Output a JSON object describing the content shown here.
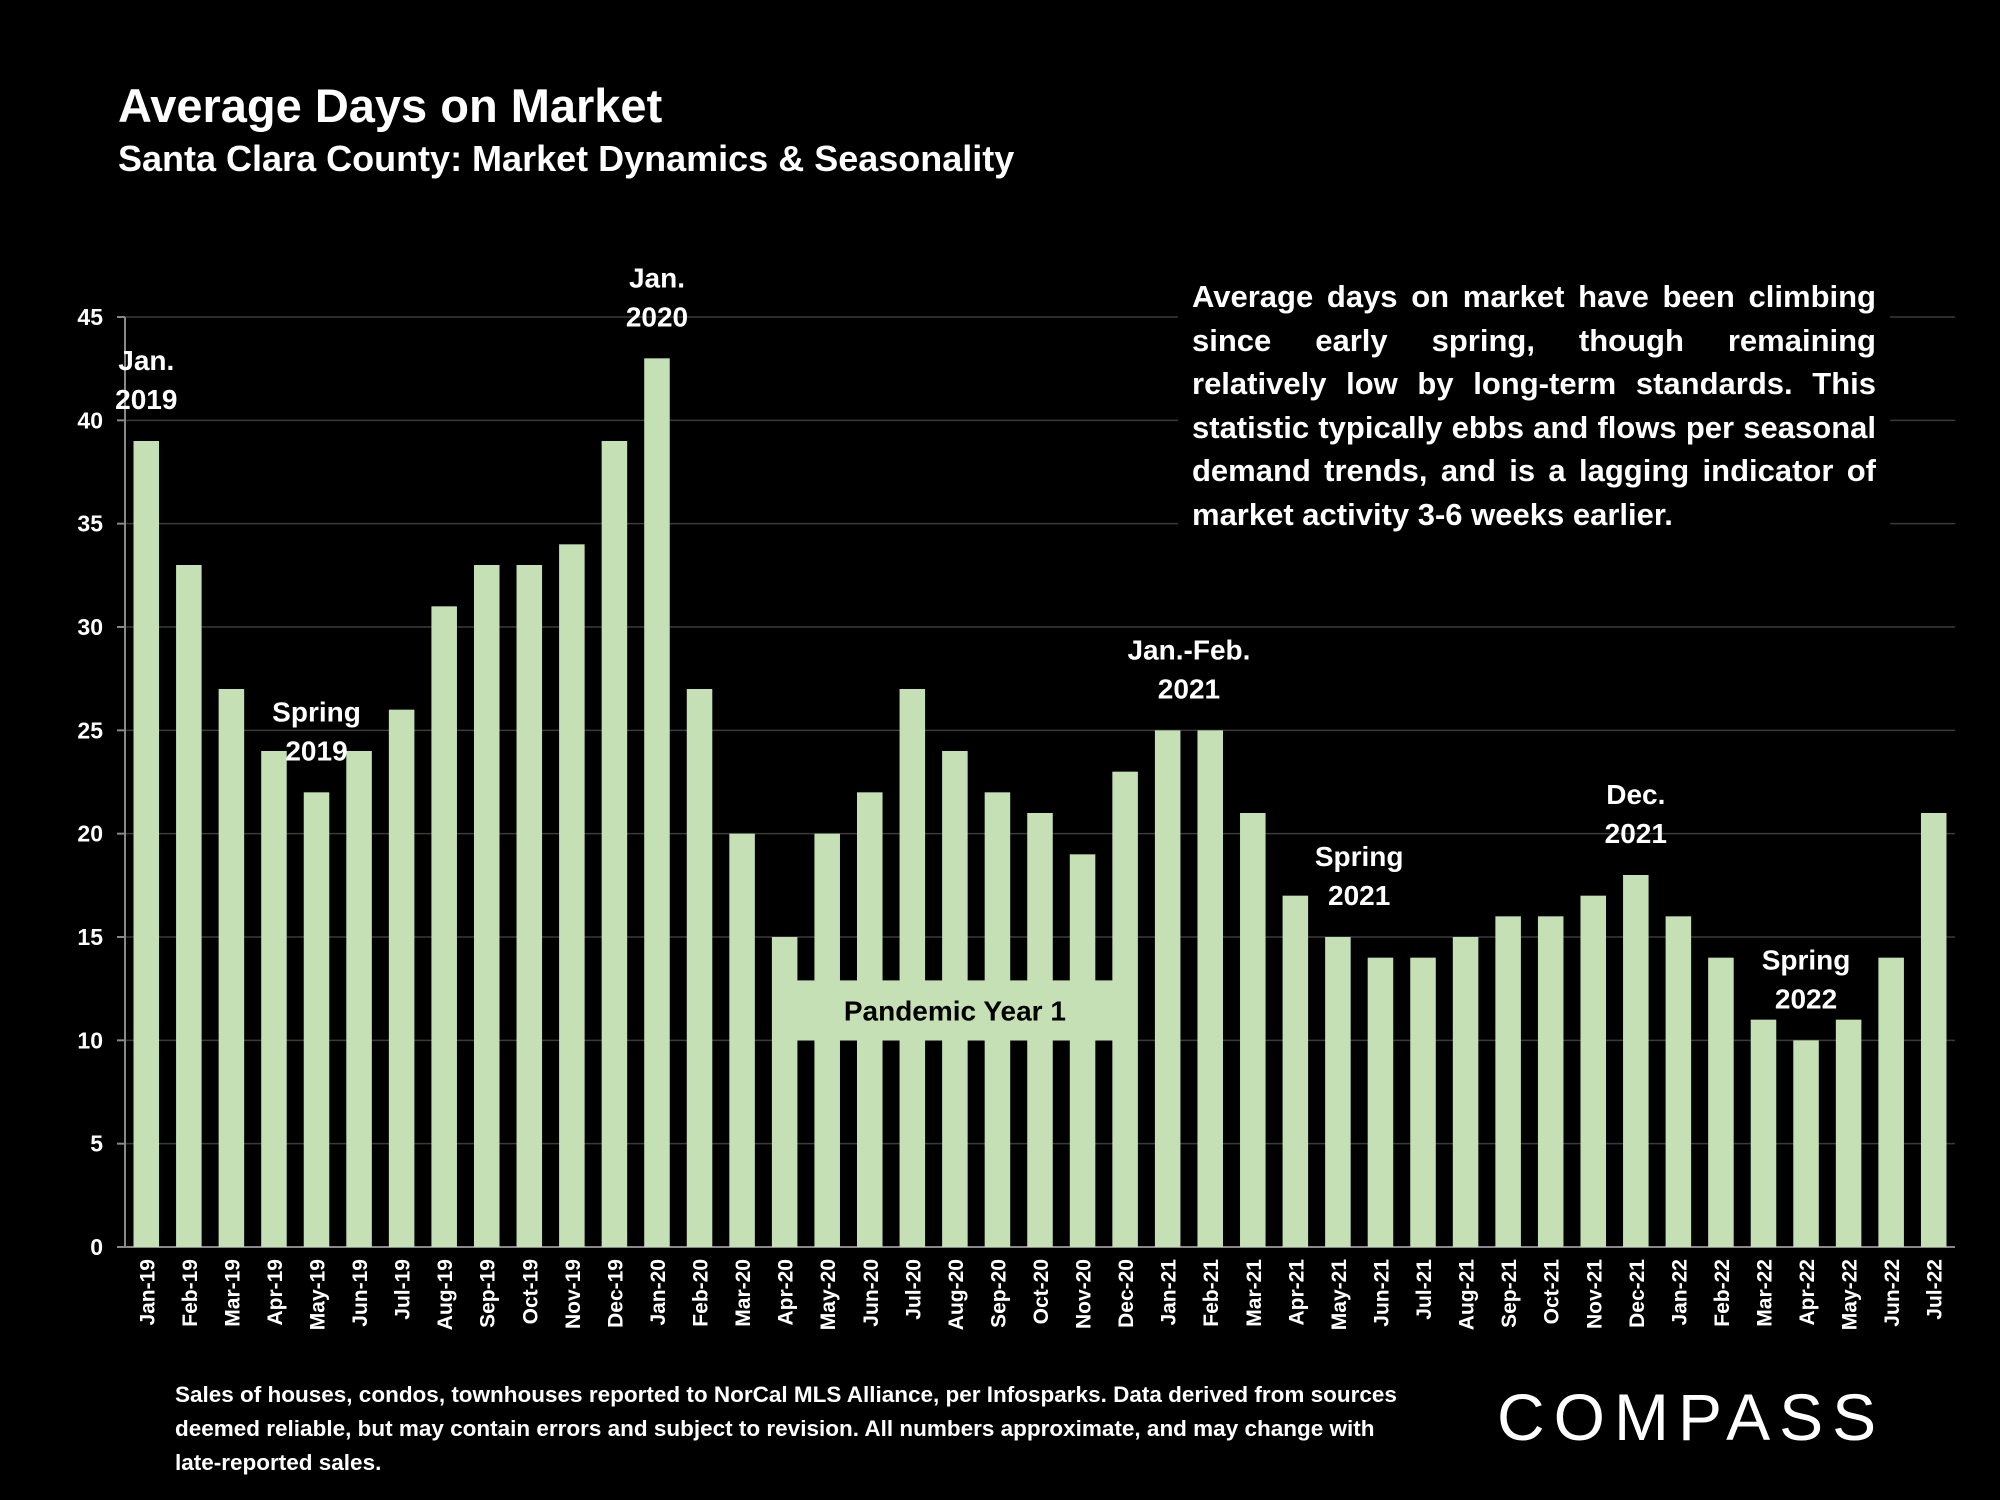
{
  "chart_data": {
    "type": "bar",
    "title": "Average Days on Market",
    "subtitle": "Santa Clara County: Market Dynamics & Seasonality",
    "categories": [
      "Jan-19",
      "Feb-19",
      "Mar-19",
      "Apr-19",
      "May-19",
      "Jun-19",
      "Jul-19",
      "Aug-19",
      "Sep-19",
      "Oct-19",
      "Nov-19",
      "Dec-19",
      "Jan-20",
      "Feb-20",
      "Mar-20",
      "Apr-20",
      "May-20",
      "Jun-20",
      "Jul-20",
      "Aug-20",
      "Sep-20",
      "Oct-20",
      "Nov-20",
      "Dec-20",
      "Jan-21",
      "Feb-21",
      "Mar-21",
      "Apr-21",
      "May-21",
      "Jun-21",
      "Jul-21",
      "Aug-21",
      "Sep-21",
      "Oct-21",
      "Nov-21",
      "Dec-21",
      "Jan-22",
      "Feb-22",
      "Mar-22",
      "Apr-22",
      "May-22",
      "Jun-22",
      "Jul-22"
    ],
    "values": [
      39,
      33,
      27,
      24,
      22,
      24,
      26,
      31,
      33,
      33,
      34,
      39,
      43,
      27,
      20,
      15,
      20,
      22,
      27,
      24,
      22,
      21,
      19,
      23,
      25,
      25,
      21,
      17,
      15,
      14,
      14,
      15,
      16,
      16,
      17,
      18,
      16,
      14,
      11,
      10,
      11,
      14,
      21
    ],
    "ylim": [
      0,
      45
    ],
    "yticks": [
      "0",
      "5",
      "10",
      "15",
      "20",
      "25",
      "30",
      "35",
      "40",
      "45"
    ],
    "xlabel": "",
    "ylabel": "",
    "grid": true,
    "bar_color": "#c5e0b4",
    "annotations": [
      {
        "lines": [
          "Jan.",
          "2019"
        ],
        "index": 0
      },
      {
        "lines": [
          "Spring",
          "2019"
        ],
        "index": 4
      },
      {
        "lines": [
          "Jan.",
          "2020"
        ],
        "index": 12
      },
      {
        "lines": [
          "Jan.-Feb.",
          "2021"
        ],
        "index": 24.5
      },
      {
        "lines": [
          "Spring",
          "2021"
        ],
        "index": 28.5
      },
      {
        "lines": [
          "Dec.",
          "2021"
        ],
        "index": 35
      },
      {
        "lines": [
          "Spring",
          "2022"
        ],
        "index": 39
      }
    ],
    "pandemic_band": {
      "label": "Pandemic Year 1",
      "start_index": 15,
      "end_index": 23
    }
  },
  "commentary": "Average days on market have been climbing since early spring, though remaining relatively low by long-term standards. This statistic typically ebbs and flows per seasonal demand trends, and is a lagging indicator of market activity 3-6 weeks earlier.",
  "footnote": "Sales of houses, condos, townhouses reported to NorCal MLS Alliance, per Infosparks. Data derived from sources deemed reliable, but may contain errors and subject to revision. All numbers approximate, and may change with late-reported sales.",
  "logo": {
    "text": "COMPASS",
    "color": "#ffffff"
  },
  "background_color": "#000000"
}
